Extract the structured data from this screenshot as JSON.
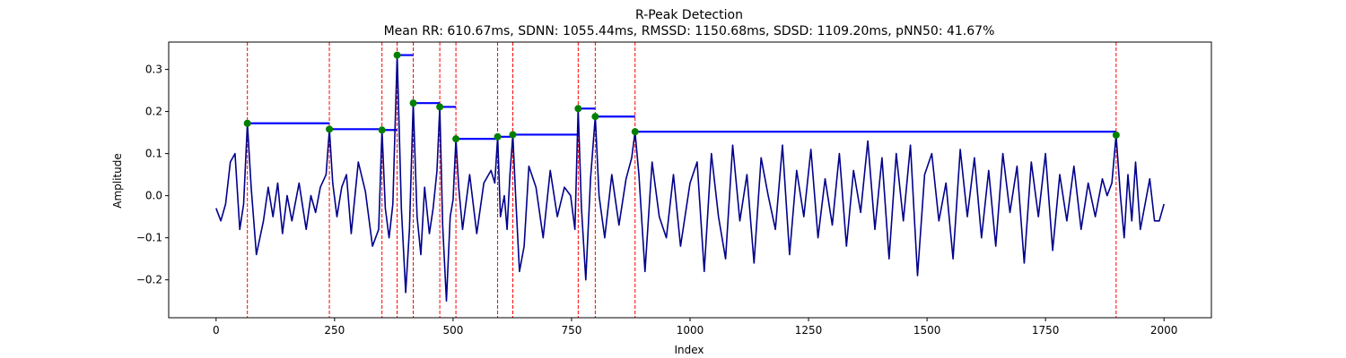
{
  "chart_data": {
    "type": "line",
    "title": "R-Peak Detection",
    "subtitle": "Mean RR: 610.67ms, SDNN: 1055.44ms, RMSSD: 1150.68ms, SDSD: 1109.20ms, pNN50: 41.67%",
    "xlabel": "Index",
    "ylabel": "Amplitude",
    "xlim": [
      -100,
      2100
    ],
    "ylim": [
      -0.29,
      0.365
    ],
    "xticks": [
      0,
      250,
      500,
      750,
      1000,
      1250,
      1500,
      1750,
      2000
    ],
    "yticks": [
      -0.2,
      -0.1,
      0.0,
      0.1,
      0.2,
      0.3
    ],
    "xtick_labels": [
      "0",
      "250",
      "500",
      "750",
      "1000",
      "1250",
      "1500",
      "1750",
      "2000"
    ],
    "ytick_labels": [
      "−0.2",
      "−0.1",
      "0.0",
      "0.1",
      "0.2",
      "0.3"
    ],
    "grid": false,
    "colors": {
      "signal": "#00008b",
      "peak_line": "#ff0000",
      "peak_marker": "#008000",
      "rr_segment": "#0000ff"
    },
    "peaks": [
      {
        "x": 66,
        "y": 0.172
      },
      {
        "x": 239,
        "y": 0.158
      },
      {
        "x": 350,
        "y": 0.156
      },
      {
        "x": 382,
        "y": 0.334
      },
      {
        "x": 416,
        "y": 0.22
      },
      {
        "x": 472,
        "y": 0.211
      },
      {
        "x": 506,
        "y": 0.135
      },
      {
        "x": 594,
        "y": 0.14
      },
      {
        "x": 626,
        "y": 0.145
      },
      {
        "x": 764,
        "y": 0.207
      },
      {
        "x": 800,
        "y": 0.188
      },
      {
        "x": 884,
        "y": 0.152
      },
      {
        "x": 1899,
        "y": 0.144
      }
    ],
    "signal": {
      "x": [
        0,
        10,
        20,
        30,
        40,
        50,
        58,
        66,
        74,
        85,
        100,
        110,
        120,
        130,
        140,
        150,
        160,
        175,
        190,
        200,
        210,
        220,
        232,
        239,
        246,
        255,
        265,
        275,
        285,
        300,
        315,
        330,
        343,
        350,
        357,
        365,
        373,
        382,
        391,
        400,
        408,
        416,
        424,
        432,
        440,
        450,
        458,
        466,
        472,
        478,
        486,
        494,
        500,
        506,
        512,
        520,
        535,
        550,
        565,
        580,
        588,
        594,
        600,
        608,
        614,
        620,
        626,
        632,
        640,
        650,
        660,
        675,
        690,
        705,
        720,
        735,
        748,
        757,
        764,
        771,
        780,
        790,
        800,
        808,
        820,
        835,
        850,
        865,
        877,
        884,
        892,
        905,
        920,
        935,
        950,
        965,
        980,
        1000,
        1015,
        1030,
        1045,
        1060,
        1075,
        1090,
        1105,
        1120,
        1135,
        1150,
        1165,
        1180,
        1195,
        1210,
        1225,
        1240,
        1255,
        1270,
        1285,
        1300,
        1315,
        1330,
        1345,
        1360,
        1375,
        1390,
        1405,
        1420,
        1435,
        1450,
        1465,
        1480,
        1495,
        1510,
        1525,
        1540,
        1555,
        1570,
        1585,
        1600,
        1615,
        1630,
        1645,
        1660,
        1675,
        1690,
        1705,
        1720,
        1735,
        1750,
        1765,
        1780,
        1795,
        1810,
        1825,
        1840,
        1855,
        1870,
        1880,
        1890,
        1899,
        1908,
        1916,
        1924,
        1932,
        1940,
        1950,
        1960,
        1970,
        1980,
        1990,
        2000
      ],
      "y": [
        -0.03,
        -0.06,
        -0.02,
        0.08,
        0.1,
        -0.08,
        -0.02,
        0.172,
        0.02,
        -0.14,
        -0.06,
        0.02,
        -0.05,
        0.03,
        -0.09,
        0.0,
        -0.06,
        0.03,
        -0.08,
        0.0,
        -0.04,
        0.02,
        0.05,
        0.158,
        0.03,
        -0.05,
        0.02,
        0.05,
        -0.09,
        0.08,
        0.01,
        -0.12,
        -0.08,
        0.156,
        -0.03,
        -0.1,
        -0.02,
        0.334,
        -0.03,
        -0.23,
        -0.08,
        0.22,
        -0.05,
        -0.14,
        0.02,
        -0.09,
        -0.03,
        0.06,
        0.211,
        -0.07,
        -0.25,
        -0.05,
        -0.01,
        0.135,
        0.02,
        -0.08,
        0.05,
        -0.09,
        0.03,
        0.06,
        0.03,
        0.14,
        -0.05,
        0.0,
        -0.08,
        0.05,
        0.145,
        0.0,
        -0.18,
        -0.12,
        0.07,
        0.02,
        -0.1,
        0.06,
        -0.05,
        0.02,
        0.0,
        -0.08,
        0.207,
        -0.03,
        -0.2,
        0.04,
        0.188,
        0.0,
        -0.1,
        0.05,
        -0.07,
        0.04,
        0.09,
        0.152,
        0.05,
        -0.18,
        0.08,
        -0.05,
        -0.1,
        0.05,
        -0.12,
        0.03,
        0.08,
        -0.18,
        0.1,
        -0.05,
        -0.15,
        0.12,
        -0.06,
        0.05,
        -0.16,
        0.09,
        0.0,
        -0.08,
        0.12,
        -0.14,
        0.06,
        -0.05,
        0.11,
        -0.1,
        0.04,
        -0.07,
        0.1,
        -0.12,
        0.06,
        -0.04,
        0.13,
        -0.08,
        0.09,
        -0.15,
        0.1,
        -0.06,
        0.12,
        -0.19,
        0.05,
        0.1,
        -0.06,
        0.03,
        -0.15,
        0.11,
        -0.05,
        0.09,
        -0.1,
        0.06,
        -0.12,
        0.1,
        -0.04,
        0.07,
        -0.16,
        0.08,
        -0.05,
        0.1,
        -0.13,
        0.05,
        -0.06,
        0.07,
        -0.08,
        0.03,
        -0.05,
        0.04,
        0.0,
        0.03,
        0.144,
        0.0,
        -0.1,
        0.05,
        -0.06,
        0.08,
        -0.08,
        -0.02,
        0.04,
        -0.06,
        -0.06,
        -0.02
      ]
    }
  }
}
